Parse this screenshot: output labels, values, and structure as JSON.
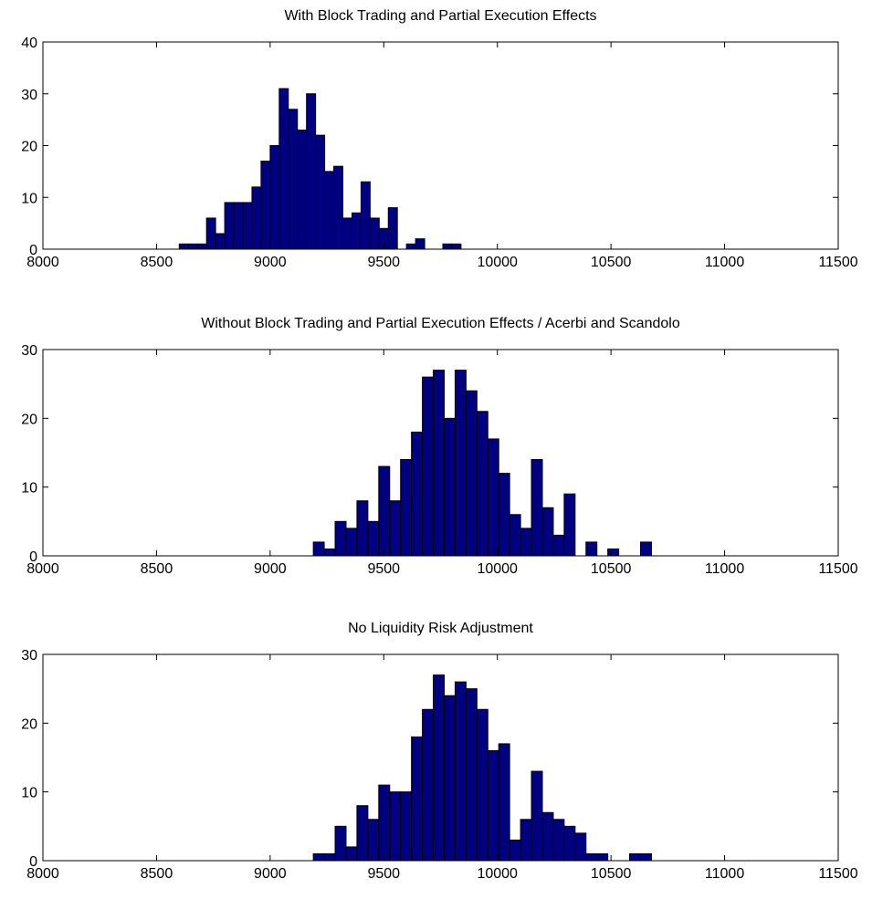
{
  "chart_data": [
    {
      "type": "bar",
      "title": "With Block Trading and Partial Execution Effects",
      "xlabel": "",
      "ylabel": "",
      "xlim": [
        8000,
        11500
      ],
      "ylim": [
        0,
        40
      ],
      "xticks": [
        8000,
        8500,
        9000,
        9500,
        10000,
        10500,
        11000,
        11500
      ],
      "yticks": [
        0,
        10,
        20,
        30,
        40
      ],
      "grid": false,
      "bin_start": 8600,
      "bin_width": 40,
      "values": [
        1,
        1,
        1,
        6,
        3,
        9,
        9,
        9,
        12,
        17,
        20,
        31,
        27,
        23,
        30,
        22,
        15,
        16,
        6,
        7,
        13,
        6,
        4,
        8,
        0,
        1,
        2,
        0,
        0,
        1,
        1
      ]
    },
    {
      "type": "bar",
      "title": "Without Block Trading and Partial Execution Effects / Acerbi and Scandolo",
      "xlabel": "",
      "ylabel": "",
      "xlim": [
        8000,
        11500
      ],
      "ylim": [
        0,
        30
      ],
      "xticks": [
        8000,
        8500,
        9000,
        9500,
        10000,
        10500,
        11000,
        11500
      ],
      "yticks": [
        0,
        10,
        20,
        30
      ],
      "grid": false,
      "bin_start": 9190,
      "bin_width": 48,
      "values": [
        2,
        1,
        5,
        4,
        8,
        5,
        13,
        8,
        14,
        18,
        26,
        27,
        20,
        27,
        24,
        21,
        17,
        12,
        6,
        4,
        14,
        7,
        3,
        9,
        0,
        2,
        0,
        1,
        0,
        0,
        2
      ]
    },
    {
      "type": "bar",
      "title": "No Liquidity Risk Adjustment",
      "xlabel": "",
      "ylabel": "",
      "xlim": [
        8000,
        11500
      ],
      "ylim": [
        0,
        30
      ],
      "xticks": [
        8000,
        8500,
        9000,
        9500,
        10000,
        10500,
        11000,
        11500
      ],
      "yticks": [
        0,
        10,
        20,
        30
      ],
      "grid": false,
      "bin_start": 9190,
      "bin_width": 48,
      "values": [
        1,
        1,
        5,
        2,
        8,
        6,
        11,
        10,
        10,
        18,
        22,
        27,
        24,
        26,
        25,
        22,
        16,
        17,
        3,
        6,
        13,
        7,
        6,
        5,
        4,
        1,
        1,
        0,
        0,
        1,
        1
      ]
    }
  ]
}
